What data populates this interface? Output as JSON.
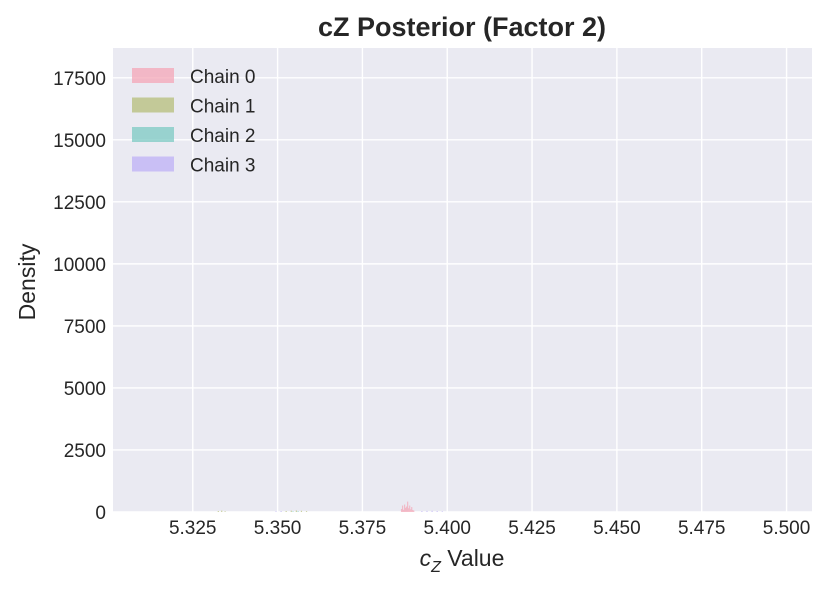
{
  "chart_data": {
    "type": "histogram",
    "title": "cZ Posterior (Factor 2)",
    "xlabel_main": "c",
    "xlabel_sub": "Z",
    "xlabel_rest": " Value",
    "ylabel": "Density",
    "xlim": [
      5.3015,
      5.5075
    ],
    "ylim": [
      0,
      18700
    ],
    "x_ticks": [
      "5.325",
      "5.350",
      "5.375",
      "5.400",
      "5.425",
      "5.450",
      "5.475",
      "5.500"
    ],
    "x_tick_values": [
      5.325,
      5.35,
      5.375,
      5.4,
      5.425,
      5.45,
      5.475,
      5.5
    ],
    "y_ticks": [
      "0",
      "2500",
      "5000",
      "7500",
      "10000",
      "12500",
      "15000",
      "17500"
    ],
    "y_tick_values": [
      0,
      2500,
      5000,
      7500,
      10000,
      12500,
      15000,
      17500
    ],
    "grid": true,
    "legend_position": "top-left",
    "series": [
      {
        "name": "Chain 0",
        "color": "#f4a6b7",
        "bins": [
          [
            5.3865,
            120
          ],
          [
            5.3868,
            260
          ],
          [
            5.3871,
            90
          ],
          [
            5.3874,
            300
          ],
          [
            5.3877,
            170
          ],
          [
            5.388,
            220
          ],
          [
            5.3883,
            420
          ],
          [
            5.3886,
            150
          ],
          [
            5.3889,
            260
          ],
          [
            5.3892,
            110
          ],
          [
            5.3895,
            200
          ],
          [
            5.3898,
            80
          ],
          [
            5.3901,
            60
          ]
        ]
      },
      {
        "name": "Chain 1",
        "color": "#b5be7a",
        "bins": [
          [
            5.3325,
            40
          ],
          [
            5.3335,
            55
          ],
          [
            5.3345,
            30
          ],
          [
            5.3525,
            40
          ],
          [
            5.354,
            55
          ],
          [
            5.3555,
            60
          ],
          [
            5.357,
            50
          ],
          [
            5.3585,
            35
          ]
        ]
      },
      {
        "name": "Chain 2",
        "color": "#7cc9c3",
        "bins": [
          [
            5.3545,
            30
          ],
          [
            5.356,
            35
          ]
        ]
      },
      {
        "name": "Chain 3",
        "color": "#bdb0f5",
        "bins": [
          [
            5.3495,
            30
          ],
          [
            5.351,
            40
          ],
          [
            5.3925,
            40
          ],
          [
            5.394,
            45
          ],
          [
            5.3955,
            50
          ],
          [
            5.397,
            40
          ],
          [
            5.3985,
            30
          ]
        ]
      }
    ]
  }
}
